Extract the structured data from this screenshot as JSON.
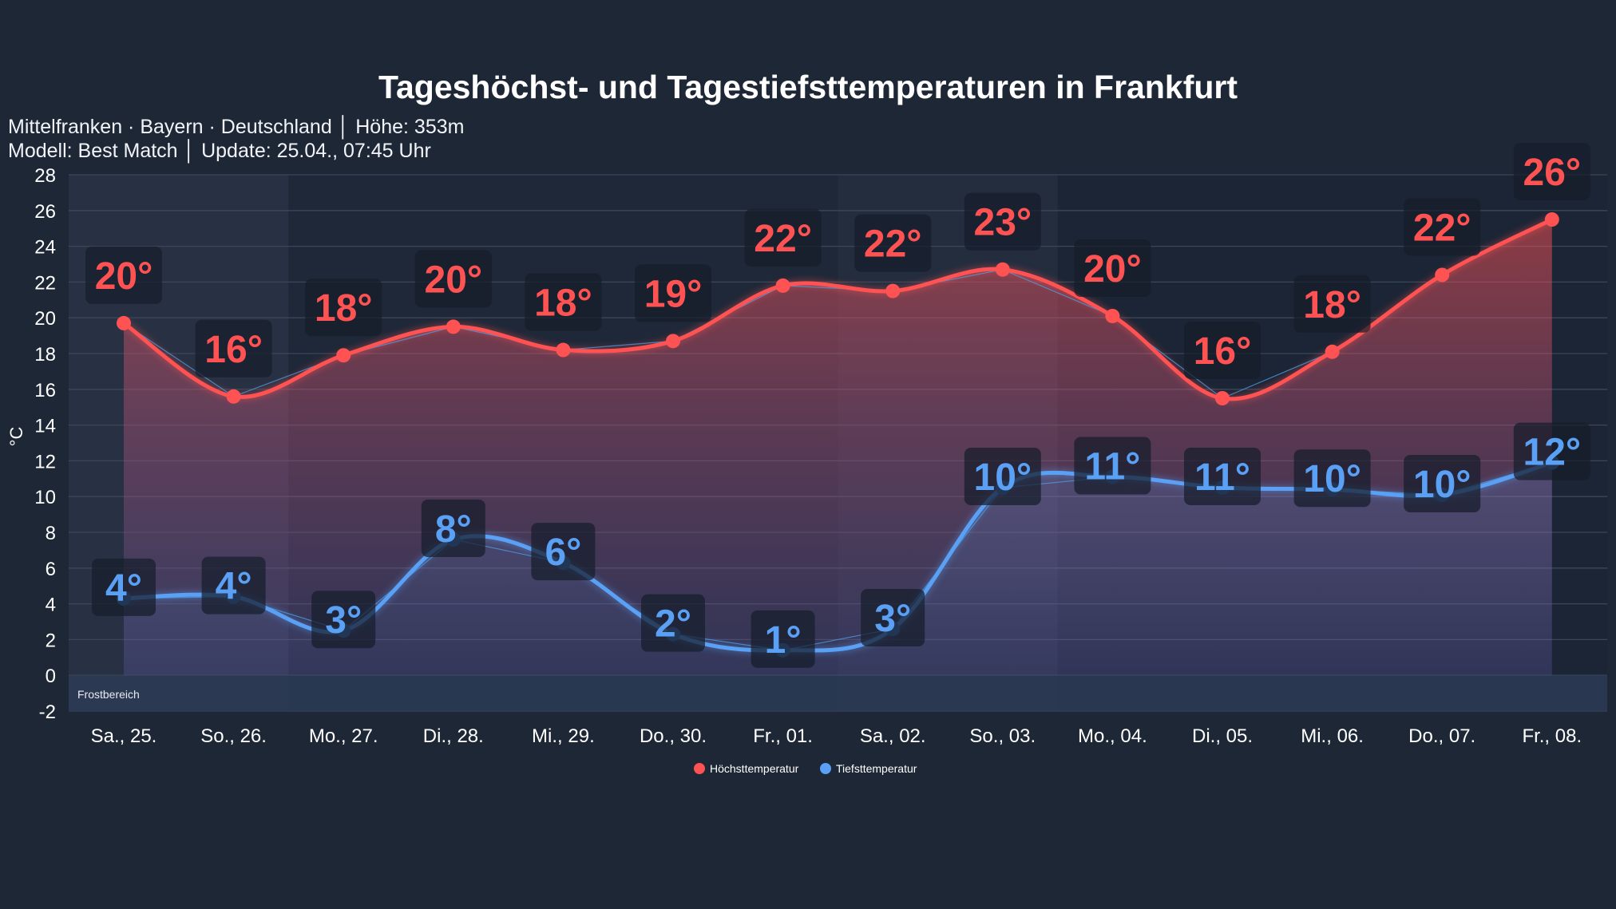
{
  "header": {
    "title": "Tageshöchst- und Tagestiefsttemperaturen in Frankfurt",
    "subtitle_line1": "Mittelfranken · Bayern · Deutschland │ Höhe: 353m",
    "subtitle_line2": "Modell: Best Match │ Update: 25.04., 07:45 Uhr"
  },
  "chart_data": {
    "type": "line",
    "title": "Tageshöchst- und Tagestiefsttemperaturen in Frankfurt",
    "ylabel": "°C",
    "xlabel": "",
    "ylim": [
      -2,
      28
    ],
    "yticks": [
      -2,
      0,
      2,
      4,
      6,
      8,
      10,
      12,
      14,
      16,
      18,
      20,
      22,
      24,
      26,
      28
    ],
    "grid": true,
    "legend_position": "bottom-center",
    "categories": [
      "Sa., 25.",
      "So., 26.",
      "Mo., 27.",
      "Di., 28.",
      "Mi., 29.",
      "Do., 30.",
      "Fr., 01.",
      "Sa., 02.",
      "So., 03.",
      "Mo., 04.",
      "Di., 05.",
      "Mi., 06.",
      "Do., 07.",
      "Fr., 08."
    ],
    "annotation": "Frostbereich",
    "series": [
      {
        "name": "Höchsttemperatur",
        "color": "#ff5252",
        "values": [
          19.7,
          15.6,
          17.9,
          19.5,
          18.2,
          18.7,
          21.8,
          21.5,
          22.7,
          20.1,
          15.5,
          18.1,
          22.4,
          25.5
        ],
        "labels": [
          "20°",
          "16°",
          "18°",
          "20°",
          "18°",
          "19°",
          "22°",
          "22°",
          "23°",
          "20°",
          "16°",
          "18°",
          "22°",
          "26°"
        ]
      },
      {
        "name": "Tiefsttemperatur",
        "color": "#5aa0f5",
        "values": [
          4.3,
          4.4,
          2.5,
          7.6,
          6.3,
          2.3,
          1.4,
          2.6,
          10.5,
          11.1,
          10.5,
          10.4,
          10.1,
          11.9
        ],
        "labels": [
          "4°",
          "4°",
          "3°",
          "8°",
          "6°",
          "2°",
          "1°",
          "3°",
          "10°",
          "11°",
          "11°",
          "10°",
          "10°",
          "12°"
        ]
      }
    ]
  }
}
